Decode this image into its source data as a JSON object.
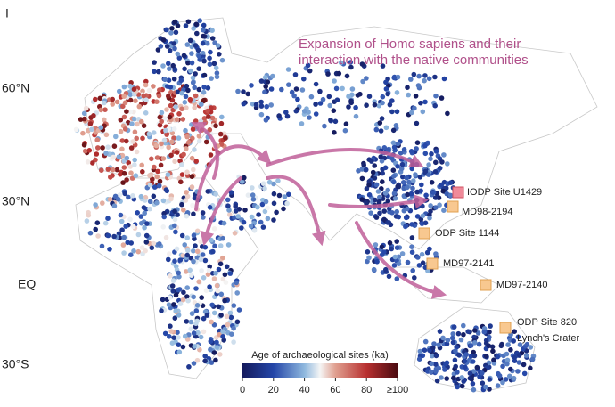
{
  "panel_label": "I",
  "title_lines": [
    "Expansion of Homo sapiens and their",
    "interaction with the native communities"
  ],
  "latitude_labels": [
    "60°N",
    "30°N",
    "EQ",
    "30°S"
  ],
  "sites": [
    "IODP Site U1429",
    "MD98-2194",
    "ODP Site 1144",
    "MD97-2141",
    "MD97-2140",
    "ODP Site 820",
    "Lynch's Crater"
  ],
  "colorbar": {
    "title": "Age of archaeological sites (ka)",
    "range": [
      0,
      100
    ],
    "ticks": [
      0,
      20,
      40,
      60,
      80,
      {
        "value": 100,
        "label": "≥100"
      }
    ]
  }
}
